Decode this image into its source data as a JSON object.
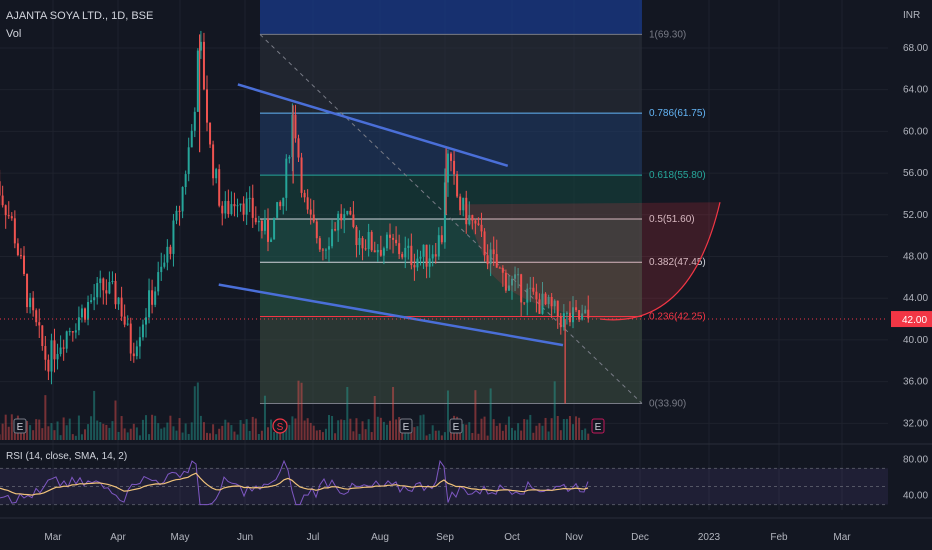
{
  "header": {
    "symbol": "AJANTA SOYA LTD., 1D, BSE",
    "volume_label": "Vol",
    "currency": "INR"
  },
  "rsi_label": "RSI (14, close, SMA, 14, 2)",
  "price_badge": {
    "value": "42.00",
    "color": "#f23645"
  },
  "chart_data": {
    "type": "candlestick",
    "x_ticks": [
      "Mar",
      "Apr",
      "May",
      "Jun",
      "Jul",
      "Aug",
      "Sep",
      "Oct",
      "Nov",
      "Dec",
      "2023",
      "Feb",
      "Mar"
    ],
    "y_ticks": [
      "68.00",
      "64.00",
      "60.00",
      "56.00",
      "52.00",
      "48.00",
      "44.00",
      "40.00",
      "36.00",
      "32.00"
    ],
    "ylim": [
      30.4,
      72.6
    ],
    "rsi_ticks": [
      "80.00",
      "40.00"
    ],
    "rsi_lim": [
      24,
      88
    ],
    "fib_levels": [
      {
        "ratio": 1,
        "price": 69.3,
        "label": "1(69.30)",
        "color": "#787b86"
      },
      {
        "ratio": 0.786,
        "price": 61.75,
        "label": "0.786(61.75)",
        "color": "#64b5f6"
      },
      {
        "ratio": 0.618,
        "price": 55.8,
        "label": "0.618(55.80)",
        "color": "#26a69a"
      },
      {
        "ratio": 0.5,
        "price": 51.6,
        "label": "0.5(51.60)",
        "color": "#d1d4dc"
      },
      {
        "ratio": 0.382,
        "price": 47.45,
        "label": "0.382(47.45)",
        "color": "#d1d4dc"
      },
      {
        "ratio": 0.236,
        "price": 42.25,
        "label": "0.236(42.25)",
        "color": "#f23645"
      },
      {
        "ratio": 0,
        "price": 33.9,
        "label": "0(33.90)",
        "color": "#787b86"
      }
    ],
    "channel_upper": {
      "from": [
        "May 27",
        64.5
      ],
      "to": [
        "Oct 1",
        56.7
      ]
    },
    "channel_lower": {
      "from": [
        "May 18",
        45.3
      ],
      "to": [
        "Oct 27",
        39.5
      ]
    },
    "series_close": [
      [
        "Feb 1",
        56
      ],
      [
        "Feb 10",
        51
      ],
      [
        "Feb 18",
        43
      ],
      [
        "Feb 26",
        38
      ],
      [
        "Mar 8",
        41
      ],
      [
        "Mar 16",
        43
      ],
      [
        "Mar 24",
        45
      ],
      [
        "Apr 1",
        44
      ],
      [
        "Apr 7",
        39
      ],
      [
        "Apr 14",
        43
      ],
      [
        "Apr 22",
        47
      ],
      [
        "Apr 29",
        52
      ],
      [
        "May 6",
        61
      ],
      [
        "May 9",
        69
      ],
      [
        "May 14",
        58
      ],
      [
        "May 20",
        52
      ],
      [
        "May 27",
        54
      ],
      [
        "Jun 3",
        52
      ],
      [
        "Jun 10",
        50
      ],
      [
        "Jun 17",
        53
      ],
      [
        "Jun 22",
        62
      ],
      [
        "Jun 28",
        52
      ],
      [
        "Jul 6",
        49
      ],
      [
        "Jul 14",
        52
      ],
      [
        "Jul 22",
        50
      ],
      [
        "Jul 30",
        49
      ],
      [
        "Aug 8",
        49
      ],
      [
        "Aug 16",
        48
      ],
      [
        "Aug 24",
        48
      ],
      [
        "Aug 31",
        50
      ],
      [
        "Sep 2",
        58
      ],
      [
        "Sep 8",
        53
      ],
      [
        "Sep 15",
        51
      ],
      [
        "Sep 22",
        48
      ],
      [
        "Sep 29",
        46
      ],
      [
        "Oct 6",
        45
      ],
      [
        "Oct 13",
        44
      ],
      [
        "Oct 20",
        43
      ],
      [
        "Oct 27",
        42
      ],
      [
        "Nov 3",
        42
      ],
      [
        "Nov 8",
        42
      ]
    ]
  }
}
